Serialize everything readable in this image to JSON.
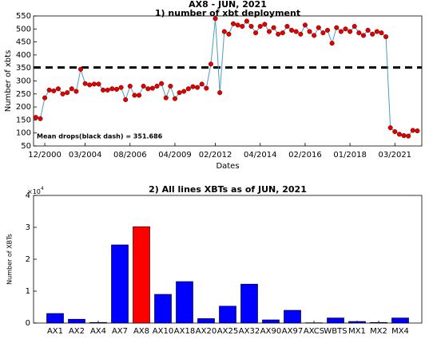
{
  "chart_data": [
    {
      "type": "line",
      "title": "AX8 - JUN, 2021",
      "subtitle": "1) number of xbt deployment",
      "y_label": "Number of xbts",
      "x_label": "Dates",
      "x": [
        0,
        1,
        2,
        3,
        4,
        5,
        6,
        7,
        8,
        9,
        10,
        11,
        12,
        13,
        14,
        15,
        16,
        17,
        18,
        19,
        20,
        21,
        22,
        23,
        24,
        25,
        26,
        27,
        28,
        29,
        30,
        31,
        32,
        33,
        34,
        35,
        36,
        37,
        38,
        39,
        40,
        41,
        42,
        43,
        44,
        45,
        46,
        47,
        48,
        49,
        50,
        51,
        52,
        53,
        54,
        55,
        56,
        57,
        58,
        59,
        60,
        61,
        62,
        63,
        64,
        65,
        66,
        67,
        68,
        69,
        70,
        71,
        72,
        73,
        74,
        75,
        76,
        77,
        78,
        79,
        80,
        81,
        82,
        83,
        84,
        85
      ],
      "series": [
        {
          "name": "AX8",
          "color": "#4a9cc4",
          "marker_color": "#e00000",
          "values": [
            160,
            155,
            235,
            265,
            262,
            270,
            250,
            255,
            270,
            260,
            345,
            290,
            285,
            288,
            288,
            265,
            265,
            270,
            268,
            275,
            228,
            280,
            245,
            245,
            280,
            270,
            272,
            280,
            290,
            235,
            280,
            232,
            255,
            260,
            270,
            278,
            275,
            288,
            272,
            365,
            540,
            255,
            490,
            480,
            520,
            515,
            510,
            530,
            510,
            485,
            510,
            518,
            490,
            505,
            480,
            485,
            510,
            495,
            490,
            480,
            515,
            490,
            475,
            505,
            485,
            495,
            445,
            505,
            490,
            500,
            490,
            510,
            485,
            475,
            495,
            480,
            490,
            485,
            470,
            120,
            105,
            95,
            90,
            88,
            110,
            108
          ]
        }
      ],
      "mean": 351.686,
      "mean_color": "#000000",
      "annotation": "Mean drops(black dash) = 351.686",
      "xlim": [
        -0.5,
        86
      ],
      "xticks": [
        {
          "value": 2,
          "label": "12/2000"
        },
        {
          "value": 11,
          "label": "03/2004"
        },
        {
          "value": 21,
          "label": "08/2006"
        },
        {
          "value": 31,
          "label": "04/2009"
        },
        {
          "value": 40,
          "label": "02/2012"
        },
        {
          "value": 50,
          "label": "04/2014"
        },
        {
          "value": 60,
          "label": "02/2016"
        },
        {
          "value": 70,
          "label": "01/2018"
        },
        {
          "value": 80,
          "label": "03/2021"
        }
      ],
      "ylim": [
        50,
        550
      ],
      "yticks": [
        50,
        100,
        150,
        200,
        250,
        300,
        350,
        400,
        450,
        500,
        550
      ]
    },
    {
      "type": "bar",
      "title": "2) All lines XBTs as of JUN, 2021",
      "y_label": "Number of XBTs",
      "y_offset_text": {
        "base": "×10",
        "exponent": "4"
      },
      "categories": [
        "AX1",
        "AX2",
        "AX4",
        "AX7",
        "AX8",
        "AX10",
        "AX18",
        "AX20",
        "AX25",
        "AX32",
        "AX90",
        "AX97",
        "AXCS",
        "WBTS",
        "MX1",
        "MX2",
        "MX4"
      ],
      "values": [
        3000,
        1200,
        200,
        24500,
        30200,
        9000,
        13000,
        1400,
        5300,
        12200,
        1000,
        4000,
        100,
        1600,
        500,
        200,
        1600
      ],
      "colors": [
        "#0000ff",
        "#0000ff",
        "#0000ff",
        "#0000ff",
        "#ff0000",
        "#0000ff",
        "#0000ff",
        "#0000ff",
        "#0000ff",
        "#0000ff",
        "#0000ff",
        "#0000ff",
        "#0000ff",
        "#0000ff",
        "#0000ff",
        "#0000ff",
        "#0000ff"
      ],
      "ylim": [
        0,
        40000
      ],
      "yticks": [
        {
          "value": 0,
          "label": "0"
        },
        {
          "value": 10000,
          "label": "1"
        },
        {
          "value": 20000,
          "label": "2"
        },
        {
          "value": 30000,
          "label": "3"
        },
        {
          "value": 40000,
          "label": "4"
        }
      ]
    }
  ]
}
